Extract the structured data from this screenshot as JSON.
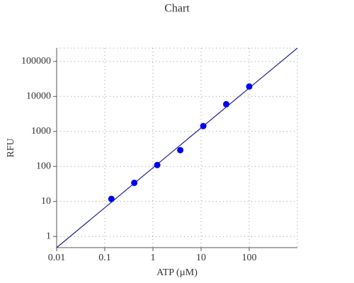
{
  "chart_data": {
    "type": "scatter",
    "title": "Chart",
    "x_label": "ATP (µM)",
    "y_label": "RFU",
    "x_scale": "log",
    "y_scale": "log",
    "grid": true,
    "xlim": [
      0.01,
      1000
    ],
    "ylim": [
      0.48,
      240000
    ],
    "xticks": [
      0.01,
      0.1,
      1,
      10,
      100
    ],
    "yticks": [
      1,
      10,
      100,
      1000,
      10000,
      100000
    ],
    "series": [
      {
        "type": "scatter",
        "color": "#0000ee",
        "x": [
          0.137,
          0.41,
          1.23,
          3.7,
          11.1,
          33.3,
          100
        ],
        "values": [
          11.8,
          34,
          110,
          292,
          1420,
          6000,
          19200
        ]
      },
      {
        "type": "line",
        "color": "#1f1f9e",
        "x": [
          0.01,
          1000
        ],
        "values": [
          0.48,
          240000
        ]
      }
    ]
  }
}
